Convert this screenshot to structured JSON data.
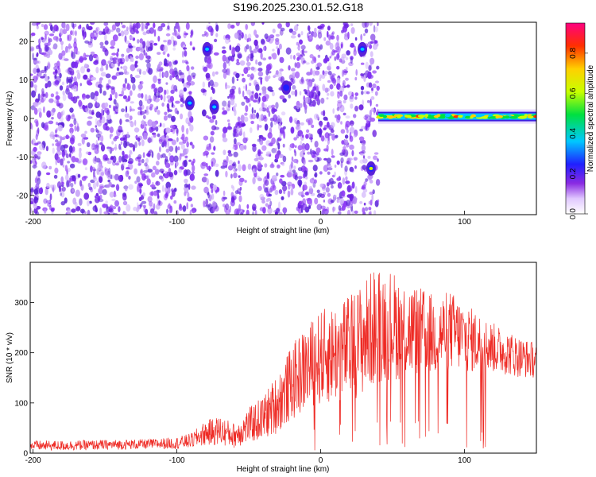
{
  "title": "S196.2025.230.01.52.G18",
  "colors": {
    "snr_line": "#ee2a24",
    "frame": "#000000",
    "spec_base": "#7b2bf0"
  },
  "chart_data": [
    {
      "type": "heatmap",
      "xlabel": "Height of straight line (km)",
      "ylabel": "Frequency (Hz)",
      "xlim": [
        -202,
        150
      ],
      "ylim": [
        -25,
        25
      ],
      "xticks": [
        -200,
        -100,
        0,
        100
      ],
      "yticks": [
        -20,
        -10,
        0,
        10,
        20
      ],
      "colorbar": {
        "label": "Normalized spectral amplitude",
        "range": [
          0.0,
          0.95
        ],
        "ticks": [
          "0.0",
          "0.2",
          "0.4",
          "0.6",
          "0.8"
        ],
        "tick_values": [
          0.0,
          0.2,
          0.4,
          0.6,
          0.8
        ]
      },
      "noise_field": {
        "x_range": [
          -202,
          40
        ],
        "freq_range": [
          -25,
          25
        ],
        "amplitude": 0.1
      },
      "gaps": [
        [
          -88,
          -82
        ],
        [
          -72,
          -68
        ],
        [
          -25,
          -23
        ],
        [
          25,
          28
        ]
      ],
      "features": [
        {
          "name": "carrier-line",
          "x": [
            40,
            150
          ],
          "freq": 0.5,
          "amplitude": 0.85
        },
        {
          "name": "burst-1",
          "x": -91,
          "freq": 4,
          "amplitude": 0.25
        },
        {
          "name": "burst-2",
          "x": -79,
          "freq": 18,
          "amplitude": 0.3
        },
        {
          "name": "burst-3",
          "x": -74,
          "freq": 3,
          "amplitude": 0.3
        },
        {
          "name": "burst-4",
          "x": -24,
          "freq": 8,
          "amplitude": 0.15
        },
        {
          "name": "burst-5",
          "x": 29,
          "freq": 18,
          "amplitude": 0.35
        },
        {
          "name": "burst-6",
          "x": 35,
          "freq": -13,
          "amplitude": 0.5
        }
      ]
    },
    {
      "type": "line",
      "xlabel": "Height of straight line (km)",
      "ylabel": "SNR (10 * v/v)",
      "xlim": [
        -202,
        150
      ],
      "ylim": [
        0,
        380
      ],
      "xticks": [
        -200,
        -100,
        0,
        100
      ],
      "yticks": [
        0,
        100,
        200,
        300
      ],
      "series": [
        {
          "name": "SNR",
          "x": [
            -202,
            -180,
            -160,
            -140,
            -120,
            -100,
            -90,
            -80,
            -70,
            -60,
            -50,
            -40,
            -30,
            -20,
            -10,
            0,
            10,
            20,
            30,
            40,
            50,
            60,
            70,
            80,
            90,
            100,
            110,
            120,
            130,
            140,
            150
          ],
          "mean": [
            15,
            15,
            16,
            17,
            18,
            20,
            25,
            40,
            45,
            35,
            55,
            70,
            100,
            140,
            170,
            190,
            200,
            210,
            230,
            260,
            255,
            245,
            240,
            235,
            245,
            230,
            220,
            210,
            200,
            190,
            185
          ],
          "spread": [
            10,
            10,
            10,
            10,
            10,
            12,
            15,
            25,
            30,
            25,
            35,
            45,
            60,
            75,
            85,
            95,
            100,
            105,
            115,
            120,
            110,
            100,
            90,
            80,
            80,
            70,
            60,
            50,
            45,
            40,
            35
          ]
        }
      ]
    }
  ]
}
